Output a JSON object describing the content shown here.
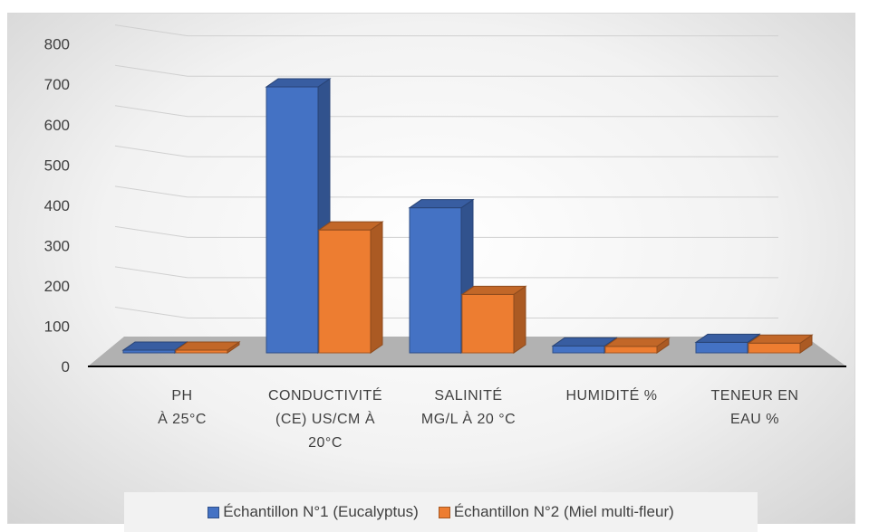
{
  "chart_data": {
    "type": "bar",
    "subtype": "3d-clustered-column",
    "title": "",
    "xlabel": "",
    "ylabel": "",
    "ylim": [
      0,
      800
    ],
    "yticks": [
      0,
      100,
      200,
      300,
      400,
      500,
      600,
      700,
      800
    ],
    "grid": true,
    "legend_position": "bottom",
    "categories": [
      [
        "PH",
        "À 25°C"
      ],
      [
        "CONDUCTIVITÉ",
        "(CE) US/CM À",
        "20°C"
      ],
      [
        "SALINITÉ",
        "MG/L À 20 °C"
      ],
      [
        "HUMIDITÉ %"
      ],
      [
        "TENEUR EN",
        "EAU %"
      ]
    ],
    "series": [
      {
        "name": "Échantillon N°1 (Eucalyptus)",
        "color": "#4472c4",
        "values": [
          4.5,
          660,
          360,
          17,
          26
        ]
      },
      {
        "name": "Échantillon N°2 (Miel multi-fleur)",
        "color": "#ed7d31",
        "values": [
          4.0,
          305,
          145,
          16,
          24
        ]
      }
    ]
  }
}
